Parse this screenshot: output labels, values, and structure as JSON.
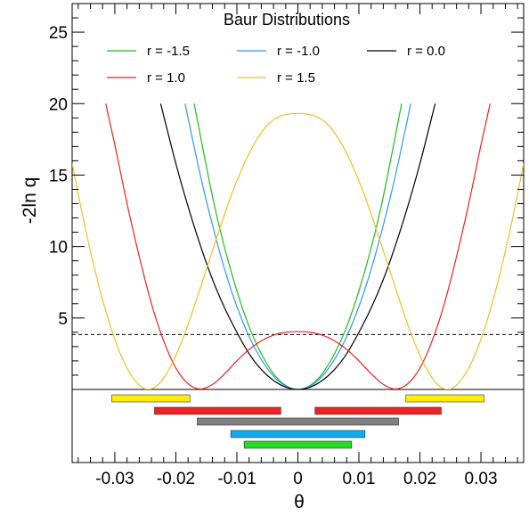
{
  "chart_data": {
    "type": "line",
    "title": "Baur Distributions",
    "xlabel": "θ",
    "ylabel": "-2ln q",
    "xlim": [
      -0.037,
      0.037
    ],
    "ylim": [
      0,
      27
    ],
    "x_ticks": [
      -0.03,
      -0.02,
      -0.01,
      0,
      0.01,
      0.02,
      0.03
    ],
    "x_tick_labels": [
      "-0.03",
      "-0.02",
      "-0.01",
      "0",
      "0.01",
      "0.02",
      "0.03"
    ],
    "y_ticks": [
      5,
      10,
      15,
      20,
      25
    ],
    "y_tick_labels": [
      "5",
      "10",
      "15",
      "20",
      "25"
    ],
    "threshold": 3.84,
    "grid": false,
    "legend_placement": "top-center",
    "series": [
      {
        "name": "r = -1.5",
        "color": "#22bb22",
        "x": [
          -0.017,
          -0.014,
          -0.012,
          -0.01,
          -0.008,
          -0.006,
          -0.004,
          -0.002,
          0,
          0.002,
          0.004,
          0.006,
          0.008,
          0.01,
          0.012,
          0.014,
          0.017
        ],
        "y": [
          20.0,
          13.5,
          9.9,
          6.9,
          4.4,
          2.5,
          1.1,
          0.28,
          0,
          0.28,
          1.1,
          2.5,
          4.4,
          6.9,
          9.9,
          13.5,
          20.0
        ]
      },
      {
        "name": "r = -1.0",
        "color": "#3399ee",
        "x": [
          -0.0185,
          -0.016,
          -0.014,
          -0.012,
          -0.01,
          -0.008,
          -0.006,
          -0.004,
          -0.002,
          0,
          0.002,
          0.004,
          0.006,
          0.008,
          0.01,
          0.012,
          0.014,
          0.016,
          0.0185
        ],
        "y": [
          20.0,
          15.0,
          11.5,
          8.4,
          5.8,
          3.7,
          2.1,
          0.93,
          0.23,
          0,
          0.23,
          0.93,
          2.1,
          3.7,
          5.8,
          8.4,
          11.5,
          15.0,
          20.0
        ]
      },
      {
        "name": "r = 0.0",
        "color": "#000000",
        "x": [
          -0.0225,
          -0.02,
          -0.018,
          -0.016,
          -0.014,
          -0.012,
          -0.01,
          -0.008,
          -0.006,
          -0.004,
          -0.002,
          0,
          0.002,
          0.004,
          0.006,
          0.008,
          0.01,
          0.012,
          0.014,
          0.016,
          0.018,
          0.02,
          0.0225
        ],
        "y": [
          20.0,
          15.8,
          12.8,
          10.1,
          7.7,
          5.7,
          4.0,
          2.5,
          1.4,
          0.63,
          0.16,
          0,
          0.16,
          0.63,
          1.4,
          2.5,
          4.0,
          5.7,
          7.7,
          10.1,
          12.8,
          15.8,
          20.0
        ]
      },
      {
        "name": "r = 1.0",
        "color": "#ee2222",
        "x": [
          -0.0315,
          -0.03,
          -0.028,
          -0.026,
          -0.024,
          -0.022,
          -0.02,
          -0.018,
          -0.016,
          -0.014,
          -0.012,
          -0.01,
          -0.008,
          -0.006,
          -0.004,
          -0.002,
          0,
          0.002,
          0.004,
          0.006,
          0.008,
          0.01,
          0.012,
          0.014,
          0.016,
          0.018,
          0.02,
          0.022,
          0.024,
          0.026,
          0.028,
          0.03,
          0.0315
        ],
        "y": [
          20.0,
          17.1,
          13.0,
          9.3,
          6.0,
          3.4,
          1.5,
          0.4,
          0.03,
          0.35,
          1.1,
          2.0,
          2.8,
          3.4,
          3.8,
          4.0,
          4.05,
          4.0,
          3.8,
          3.4,
          2.8,
          2.0,
          1.1,
          0.35,
          0.03,
          0.4,
          1.5,
          3.4,
          6.0,
          9.3,
          13.0,
          17.1,
          20.0
        ]
      },
      {
        "name": "r = 1.5",
        "color": "#f0c020",
        "x": [
          -0.037,
          -0.035,
          -0.033,
          -0.031,
          -0.029,
          -0.027,
          -0.025,
          -0.023,
          -0.021,
          -0.019,
          -0.017,
          -0.015,
          -0.013,
          -0.011,
          -0.009,
          -0.007,
          -0.005,
          -0.003,
          -0.001,
          0,
          0.001,
          0.003,
          0.005,
          0.007,
          0.009,
          0.011,
          0.013,
          0.015,
          0.017,
          0.019,
          0.021,
          0.023,
          0.025,
          0.027,
          0.029,
          0.031,
          0.033,
          0.035,
          0.037
        ],
        "y": [
          15.8,
          11.6,
          7.9,
          4.8,
          2.4,
          0.8,
          0.03,
          0.3,
          1.5,
          3.4,
          5.8,
          8.4,
          11.0,
          13.5,
          15.6,
          17.3,
          18.5,
          19.1,
          19.3,
          19.3,
          19.3,
          19.1,
          18.5,
          17.3,
          15.6,
          13.5,
          11.0,
          8.4,
          5.8,
          3.4,
          1.5,
          0.3,
          0.03,
          0.8,
          2.4,
          4.8,
          7.9,
          11.6,
          15.8
        ]
      }
    ],
    "intervals": [
      {
        "series": "r = 1.5",
        "fill": "#ffee00",
        "ranges": [
          [
            -0.0305,
            -0.0177
          ],
          [
            0.0177,
            0.0305
          ]
        ]
      },
      {
        "series": "r = 1.0",
        "fill": "#ee2222",
        "ranges": [
          [
            -0.0235,
            -0.0028
          ],
          [
            0.0028,
            0.0235
          ]
        ]
      },
      {
        "series": "r = 0.0",
        "fill": "#808080",
        "ranges": [
          [
            -0.0165,
            0.0165
          ]
        ]
      },
      {
        "series": "r = -1.0",
        "fill": "#11aaee",
        "ranges": [
          [
            -0.011,
            0.011
          ]
        ]
      },
      {
        "series": "r = -1.5",
        "fill": "#22dd22",
        "ranges": [
          [
            -0.0088,
            0.0088
          ]
        ]
      }
    ]
  }
}
